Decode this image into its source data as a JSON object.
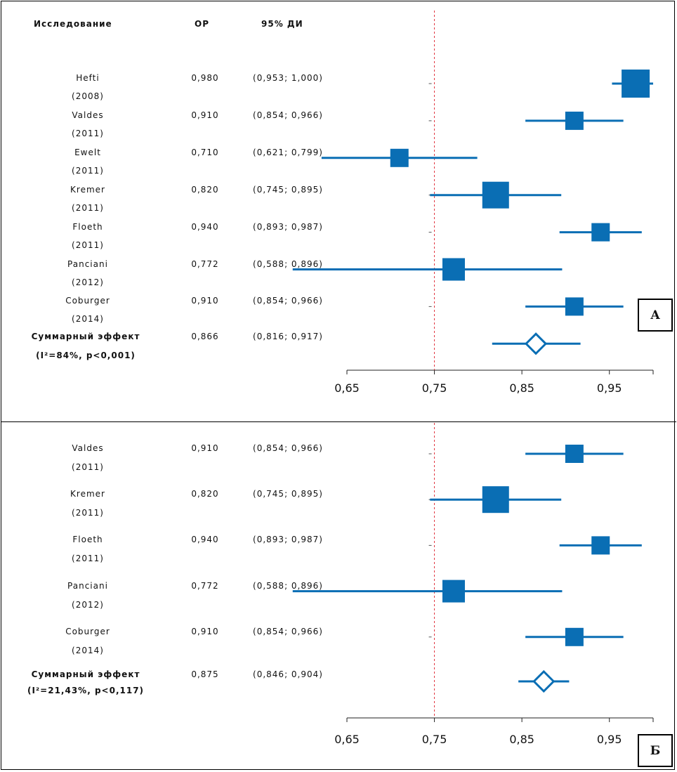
{
  "headers": {
    "study": "Исследование",
    "or": "ОР",
    "ci": "95% ДИ"
  },
  "chart_data": [
    {
      "type": "forest",
      "panel_label": "А",
      "xlim": [
        0.65,
        1.0
      ],
      "xticks": [
        0.65,
        0.75,
        0.85,
        0.95
      ],
      "xtick_labels": [
        "0,65",
        "0,75",
        "0,85",
        "0,95"
      ],
      "reference_line": 0.75,
      "studies": [
        {
          "name": "Hefti",
          "year": "(2008)",
          "or": 0.98,
          "lo": 0.953,
          "hi": 1.0,
          "or_text": "0,980",
          "ci_text": "(0,953; 1,000)",
          "weight": 20
        },
        {
          "name": "Valdes",
          "year": "(2011)",
          "or": 0.91,
          "lo": 0.854,
          "hi": 0.966,
          "or_text": "0,910",
          "ci_text": "(0,854; 0,966)",
          "weight": 13
        },
        {
          "name": "Ewelt",
          "year": "(2011)",
          "or": 0.71,
          "lo": 0.621,
          "hi": 0.799,
          "or_text": "0,710",
          "ci_text": "(0,621; 0,799)",
          "weight": 13
        },
        {
          "name": "Kremer",
          "year": "(2011)",
          "or": 0.82,
          "lo": 0.745,
          "hi": 0.895,
          "or_text": "0,820",
          "ci_text": "(0,745; 0,895)",
          "weight": 19
        },
        {
          "name": "Floeth",
          "year": "(2011)",
          "or": 0.94,
          "lo": 0.893,
          "hi": 0.987,
          "or_text": "0,940",
          "ci_text": "(0,893; 0,987)",
          "weight": 13
        },
        {
          "name": "Panciani",
          "year": "(2012)",
          "or": 0.772,
          "lo": 0.588,
          "hi": 0.896,
          "or_text": "0,772",
          "ci_text": "(0,588; 0,896)",
          "weight": 16
        },
        {
          "name": "Coburger",
          "year": "(2014)",
          "or": 0.91,
          "lo": 0.854,
          "hi": 0.966,
          "or_text": "0,910",
          "ci_text": "(0,854; 0,966)",
          "weight": 13
        }
      ],
      "summary": {
        "label": "Суммарный эффект",
        "stats": "(I²=84%, p<0,001)",
        "or": 0.866,
        "lo": 0.816,
        "hi": 0.917,
        "or_text": "0,866",
        "ci_text": "(0,816; 0,917)"
      }
    },
    {
      "type": "forest",
      "panel_label": "Б",
      "xlim": [
        0.65,
        1.0
      ],
      "xticks": [
        0.65,
        0.75,
        0.85,
        0.95
      ],
      "xtick_labels": [
        "0,65",
        "0,75",
        "0,85",
        "0,95"
      ],
      "reference_line": 0.75,
      "studies": [
        {
          "name": "Valdes",
          "year": "(2011)",
          "or": 0.91,
          "lo": 0.854,
          "hi": 0.966,
          "or_text": "0,910",
          "ci_text": "(0,854; 0,966)",
          "weight": 13
        },
        {
          "name": "Kremer",
          "year": "(2011)",
          "or": 0.82,
          "lo": 0.745,
          "hi": 0.895,
          "or_text": "0,820",
          "ci_text": "(0,745; 0,895)",
          "weight": 19
        },
        {
          "name": "Floeth",
          "year": "(2011)",
          "or": 0.94,
          "lo": 0.893,
          "hi": 0.987,
          "or_text": "0,940",
          "ci_text": "(0,893; 0,987)",
          "weight": 13
        },
        {
          "name": "Panciani",
          "year": "(2012)",
          "or": 0.772,
          "lo": 0.588,
          "hi": 0.896,
          "or_text": "0,772",
          "ci_text": "(0,588; 0,896)",
          "weight": 16
        },
        {
          "name": "Coburger",
          "year": "(2014)",
          "or": 0.91,
          "lo": 0.854,
          "hi": 0.966,
          "or_text": "0,910",
          "ci_text": "(0,854; 0,966)",
          "weight": 13
        }
      ],
      "summary": {
        "label": "Суммарный эффект",
        "stats": "(I²=21,43%, p<0,117)",
        "or": 0.875,
        "lo": 0.846,
        "hi": 0.904,
        "or_text": "0,875",
        "ci_text": "(0,846; 0,904)"
      }
    }
  ],
  "colors": {
    "marker": "#0a6eb4",
    "reference": "#e0303a",
    "axis": "#222222"
  }
}
